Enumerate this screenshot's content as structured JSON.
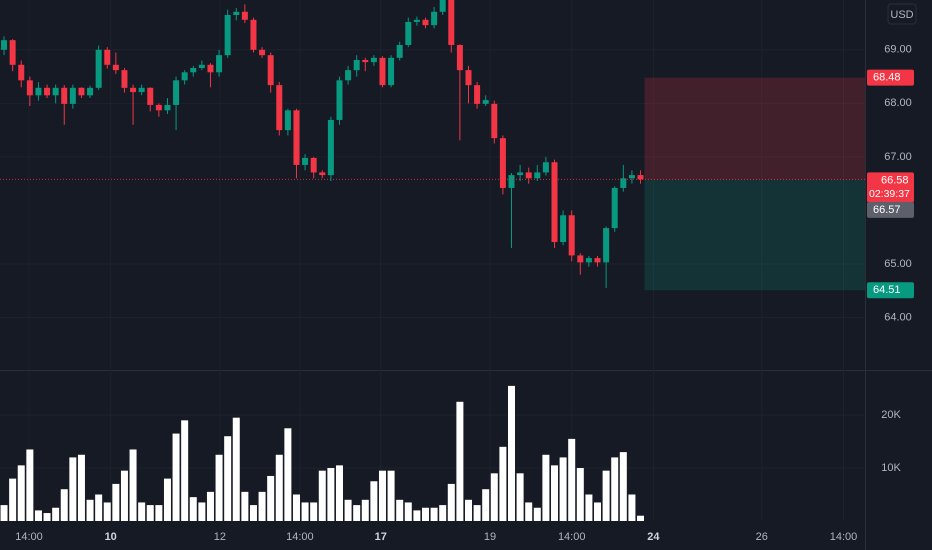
{
  "chart_data": {
    "type": "candlestick",
    "currency": "USD",
    "up_color": "#089981",
    "down_color": "#f23645",
    "open": [
      69.0,
      69.18,
      68.72,
      68.43,
      68.15,
      68.29,
      68.15,
      68.29,
      67.99,
      68.29,
      68.15,
      68.29,
      69.0,
      68.72,
      68.62,
      68.29,
      68.21,
      68.29,
      67.97,
      67.87,
      67.97,
      68.43,
      68.58,
      68.66,
      68.72,
      68.58,
      68.9,
      69.65,
      69.71,
      69.56,
      69.0,
      68.9,
      68.34,
      67.5,
      67.87,
      66.85,
      66.98,
      66.71,
      66.66,
      67.69,
      68.43,
      68.62,
      68.81,
      68.77,
      68.85,
      68.34,
      68.85,
      69.09,
      69.52,
      69.56,
      69.46,
      69.71,
      69.93,
      69.09,
      68.62,
      68.34,
      67.99,
      67.99,
      67.35,
      66.42,
      66.66,
      66.71,
      66.6,
      66.71,
      66.9,
      65.41,
      65.91,
      65.16,
      65.03,
      65.11,
      65.03,
      65.67,
      66.42,
      66.6,
      66.66
    ],
    "high": [
      69.25,
      69.2,
      68.8,
      68.5,
      68.4,
      68.35,
      68.35,
      68.34,
      68.35,
      68.3,
      68.33,
      69.08,
      69.05,
      68.95,
      68.66,
      68.35,
      68.35,
      68.3,
      68.0,
      68.1,
      68.5,
      68.62,
      68.7,
      68.8,
      68.75,
      69.0,
      69.75,
      69.78,
      69.85,
      69.6,
      69.05,
      68.95,
      68.4,
      67.9,
      67.9,
      67.05,
      67.0,
      66.75,
      67.75,
      68.5,
      68.7,
      68.9,
      68.85,
      68.9,
      68.88,
      68.9,
      69.15,
      69.6,
      69.62,
      69.6,
      69.8,
      69.93,
      69.93,
      69.1,
      68.7,
      68.4,
      68.15,
      68.05,
      67.4,
      66.7,
      66.85,
      66.8,
      66.85,
      67.0,
      66.95,
      66.0,
      66.0,
      65.2,
      65.15,
      65.15,
      65.7,
      66.45,
      66.85,
      66.75,
      66.75
    ],
    "low": [
      68.9,
      68.6,
      68.3,
      67.95,
      68.05,
      68.1,
      68.0,
      67.6,
      67.9,
      68.1,
      68.1,
      68.25,
      68.65,
      68.55,
      68.2,
      67.6,
      68.15,
      67.85,
      67.75,
      67.8,
      67.5,
      68.35,
      68.5,
      68.62,
      68.3,
      68.5,
      68.85,
      69.55,
      69.5,
      68.95,
      68.85,
      68.2,
      67.4,
      67.4,
      66.6,
      66.75,
      66.6,
      66.6,
      66.55,
      67.6,
      68.35,
      68.5,
      68.6,
      68.7,
      68.3,
      68.3,
      68.8,
      69.05,
      69.45,
      69.4,
      69.4,
      69.65,
      68.95,
      67.31,
      68.0,
      67.9,
      67.95,
      67.25,
      66.3,
      65.3,
      66.55,
      66.5,
      66.55,
      66.65,
      65.3,
      65.35,
      65.05,
      64.8,
      64.95,
      64.95,
      64.55,
      65.6,
      66.35,
      66.5,
      66.5
    ],
    "close": [
      69.18,
      68.72,
      68.43,
      68.15,
      68.29,
      68.15,
      68.29,
      67.99,
      68.29,
      68.15,
      68.29,
      69.0,
      68.72,
      68.62,
      68.29,
      68.21,
      68.29,
      67.97,
      67.87,
      67.97,
      68.43,
      68.58,
      68.66,
      68.72,
      68.58,
      68.9,
      69.65,
      69.71,
      69.56,
      69.0,
      68.9,
      68.34,
      67.5,
      67.87,
      66.85,
      66.98,
      66.71,
      66.66,
      67.69,
      68.43,
      68.62,
      68.81,
      68.77,
      68.85,
      68.34,
      68.85,
      69.09,
      69.52,
      69.56,
      69.46,
      69.71,
      69.93,
      69.09,
      68.62,
      68.34,
      67.99,
      68.06,
      67.35,
      66.42,
      66.66,
      66.71,
      66.6,
      66.71,
      66.9,
      65.41,
      65.91,
      65.16,
      65.03,
      65.11,
      65.03,
      65.67,
      66.42,
      66.6,
      66.66,
      66.58
    ],
    "ylim": [
      63.02,
      69.93
    ],
    "yticks": [
      {
        "value": 64,
        "label": "64.00"
      },
      {
        "value": 65,
        "label": "65.00"
      },
      {
        "value": 67,
        "label": "67.00"
      },
      {
        "value": 68,
        "label": "68.00"
      },
      {
        "value": 69,
        "label": "69.00"
      }
    ],
    "xlim": [
      -0.47,
      100.1
    ],
    "xticks": [
      {
        "value": 2.9,
        "label": "14:00"
      },
      {
        "value": 12.4,
        "label": "10",
        "major": true
      },
      {
        "value": 25.1,
        "label": "12"
      },
      {
        "value": 34.4,
        "label": "14:00"
      },
      {
        "value": 43.8,
        "label": "17",
        "major": true
      },
      {
        "value": 56.5,
        "label": "19"
      },
      {
        "value": 66.0,
        "label": "14:00"
      },
      {
        "value": 75.5,
        "label": "24",
        "major": true
      },
      {
        "value": 88.1,
        "label": "26"
      },
      {
        "value": 97.6,
        "label": "14:00"
      }
    ],
    "countdown": "02:39:37",
    "entry_price": 66.57,
    "take_profit": 68.48,
    "stop_loss": 64.51,
    "volume": {
      "color": "#ffffff",
      "ylim": [
        0,
        28500
      ],
      "yticks": [
        {
          "value": 10000,
          "label": "10K"
        },
        {
          "value": 20000,
          "label": "20K"
        }
      ],
      "values": [
        3000,
        8000,
        10500,
        13500,
        2000,
        1500,
        2500,
        6000,
        12000,
        12500,
        4000,
        5000,
        3500,
        7000,
        9500,
        13500,
        3500,
        3000,
        3000,
        8000,
        16500,
        19000,
        4500,
        3500,
        5500,
        12500,
        16000,
        19500,
        5500,
        3000,
        5500,
        8500,
        12500,
        17500,
        5000,
        3500,
        3500,
        9500,
        10000,
        10500,
        4000,
        3000,
        4000,
        7500,
        9500,
        9500,
        4000,
        3500,
        2000,
        2500,
        2500,
        3000,
        7000,
        22500,
        4000,
        3000,
        6000,
        9000,
        14000,
        25500,
        9000,
        3500,
        2500,
        12500,
        10500,
        12000,
        15500,
        10000,
        5000,
        3500,
        9500,
        12000,
        13000,
        5000,
        1000
      ]
    }
  }
}
